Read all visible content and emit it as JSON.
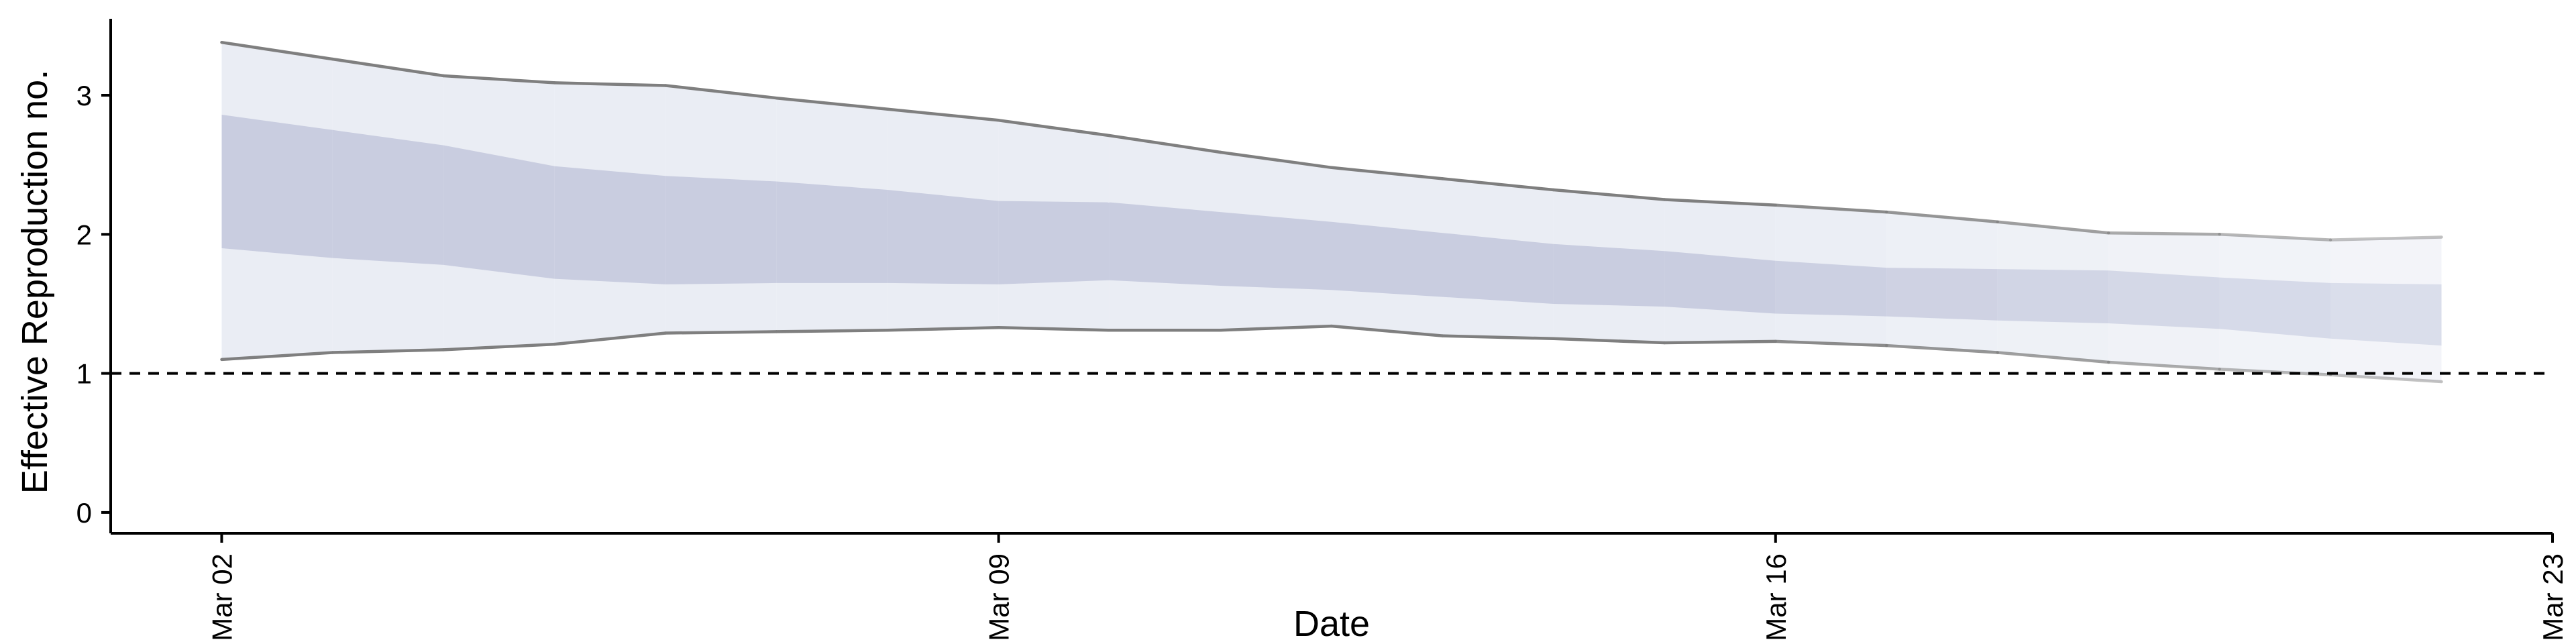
{
  "chart_data": {
    "type": "area",
    "title": "",
    "xlabel": "Date",
    "ylabel": "Effective Reproduction no.",
    "x_tick_labels": [
      "Mar 02",
      "Mar 09",
      "Mar 16",
      "Mar 23"
    ],
    "y_tick_labels": [
      "0",
      "1",
      "2",
      "3"
    ],
    "xlim": [
      "2020-03-01",
      "2020-03-23"
    ],
    "ylim": [
      -0.15,
      3.55
    ],
    "grid": false,
    "legend": "none",
    "reference_line": {
      "y": 1,
      "style": "dashed"
    },
    "x": [
      "2020-03-02",
      "2020-03-03",
      "2020-03-04",
      "2020-03-05",
      "2020-03-06",
      "2020-03-07",
      "2020-03-08",
      "2020-03-09",
      "2020-03-10",
      "2020-03-11",
      "2020-03-12",
      "2020-03-13",
      "2020-03-14",
      "2020-03-15",
      "2020-03-16",
      "2020-03-17",
      "2020-03-18",
      "2020-03-19",
      "2020-03-20",
      "2020-03-21",
      "2020-03-22"
    ],
    "series": [
      {
        "band": "outer",
        "upper": [
          3.38,
          3.26,
          3.14,
          3.09,
          3.07,
          2.98,
          2.9,
          2.82,
          2.71,
          2.59,
          2.48,
          2.4,
          2.32,
          2.25,
          2.21,
          2.16,
          2.09,
          2.01,
          2.0,
          1.96,
          1.98
        ],
        "lower": [
          1.1,
          1.15,
          1.17,
          1.21,
          1.29,
          1.3,
          1.31,
          1.33,
          1.31,
          1.31,
          1.34,
          1.27,
          1.25,
          1.22,
          1.23,
          1.2,
          1.15,
          1.08,
          1.03,
          0.99,
          0.94
        ]
      },
      {
        "band": "inner",
        "upper": [
          2.86,
          2.75,
          2.64,
          2.49,
          2.42,
          2.38,
          2.32,
          2.24,
          2.23,
          2.16,
          2.09,
          2.01,
          1.93,
          1.88,
          1.81,
          1.76,
          1.75,
          1.74,
          1.69,
          1.65,
          1.64
        ],
        "lower": [
          1.9,
          1.83,
          1.78,
          1.68,
          1.64,
          1.65,
          1.65,
          1.64,
          1.67,
          1.63,
          1.6,
          1.55,
          1.5,
          1.48,
          1.43,
          1.41,
          1.38,
          1.36,
          1.32,
          1.25,
          1.2
        ]
      }
    ],
    "colors": {
      "inner_band": "#c9cde0",
      "outer_band": "#eaedf4",
      "bound_line": "#7f7f7f",
      "axis": "#000000"
    }
  }
}
